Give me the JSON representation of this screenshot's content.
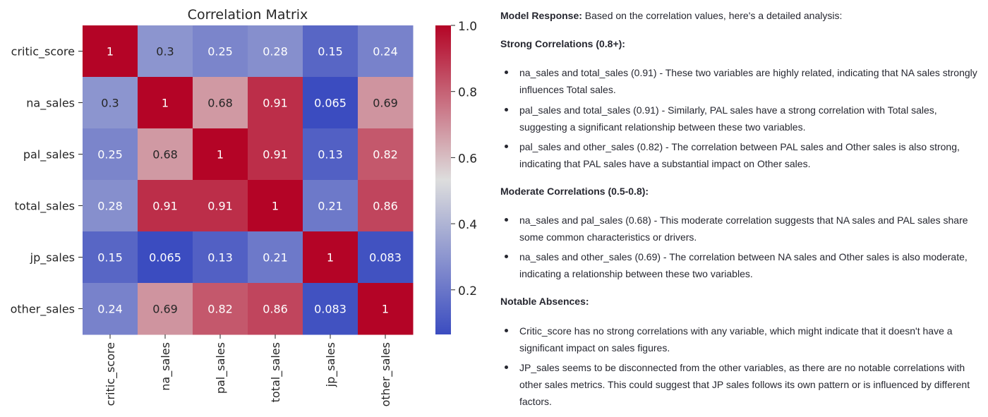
{
  "chart_data": {
    "type": "heatmap",
    "title": "Correlation Matrix",
    "labels": [
      "critic_score",
      "na_sales",
      "pal_sales",
      "total_sales",
      "jp_sales",
      "other_sales"
    ],
    "values": [
      [
        1,
        0.3,
        0.25,
        0.28,
        0.15,
        0.24
      ],
      [
        0.3,
        1,
        0.68,
        0.91,
        0.065,
        0.69
      ],
      [
        0.25,
        0.68,
        1,
        0.91,
        0.13,
        0.82
      ],
      [
        0.28,
        0.91,
        0.91,
        1,
        0.21,
        0.86
      ],
      [
        0.15,
        0.065,
        0.13,
        0.21,
        1,
        0.083
      ],
      [
        0.24,
        0.69,
        0.82,
        0.86,
        0.083,
        1
      ]
    ],
    "cell_labels": [
      [
        "1",
        "0.3",
        "0.25",
        "0.28",
        "0.15",
        "0.24"
      ],
      [
        "0.3",
        "1",
        "0.68",
        "0.91",
        "0.065",
        "0.69"
      ],
      [
        "0.25",
        "0.68",
        "1",
        "0.91",
        "0.13",
        "0.82"
      ],
      [
        "0.28",
        "0.91",
        "0.91",
        "1",
        "0.21",
        "0.86"
      ],
      [
        "0.15",
        "0.065",
        "0.13",
        "0.21",
        "1",
        "0.083"
      ],
      [
        "0.24",
        "0.69",
        "0.82",
        "0.86",
        "0.083",
        "1"
      ]
    ],
    "colorbar": {
      "range": [
        0.065,
        1.0
      ],
      "ticks": [
        0.2,
        0.4,
        0.6,
        0.8,
        1.0
      ],
      "tick_labels": [
        "0.2",
        "0.4",
        "0.6",
        "0.8",
        "1.0"
      ],
      "colormap": "coolwarm"
    },
    "colors": {
      "low": "#3b4cc0",
      "mid": "#dddddd",
      "high": "#b40426"
    }
  },
  "response": {
    "intro_label": "Model Response:",
    "intro_text": " Based on the correlation values, here's a detailed analysis:",
    "sections": [
      {
        "heading": "Strong Correlations (0.8+):",
        "items": [
          "na_sales and total_sales (0.91) - These two variables are highly related, indicating that NA sales strongly influences Total sales.",
          "pal_sales and total_sales (0.91) - Similarly, PAL sales have a strong correlation with Total sales, suggesting a significant relationship between these two variables.",
          "pal_sales and other_sales (0.82) - The correlation between PAL sales and Other sales is also strong, indicating that PAL sales have a substantial impact on Other sales."
        ]
      },
      {
        "heading": "Moderate Correlations (0.5-0.8):",
        "items": [
          "na_sales and pal_sales (0.68) - This moderate correlation suggests that NA sales and PAL sales share some common characteristics or drivers.",
          "na_sales and other_sales (0.69) - The correlation between NA sales and Other sales is also moderate, indicating a relationship between these two variables."
        ]
      },
      {
        "heading": "Notable Absences:",
        "items": [
          "Critic_score has no strong correlations with any variable, which might indicate that it doesn't have a significant impact on sales figures.",
          "JP_sales seems to be disconnected from the other variables, as there are no notable correlations with other sales metrics. This could suggest that JP sales follows its own pattern or is influenced by different factors."
        ]
      }
    ]
  }
}
